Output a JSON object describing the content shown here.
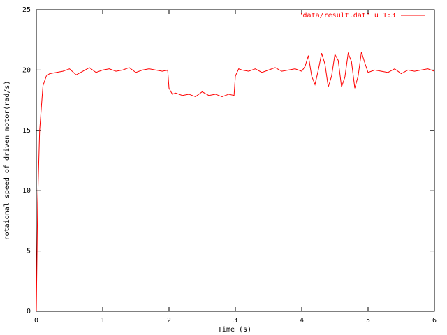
{
  "chart_data": {
    "type": "line",
    "xlabel": "Time (s)",
    "ylabel": "rotaional speed of driven motor(rad/s)",
    "x": [
      0,
      0.02,
      0.05,
      0.1,
      0.15,
      0.2,
      0.3,
      0.4,
      0.5,
      0.6,
      0.7,
      0.8,
      0.9,
      1.0,
      1.1,
      1.2,
      1.3,
      1.4,
      1.5,
      1.6,
      1.7,
      1.8,
      1.9,
      1.98,
      2.0,
      2.05,
      2.1,
      2.2,
      2.3,
      2.4,
      2.5,
      2.6,
      2.7,
      2.8,
      2.9,
      2.98,
      3.0,
      3.05,
      3.1,
      3.2,
      3.3,
      3.4,
      3.5,
      3.6,
      3.7,
      3.8,
      3.9,
      4.0,
      4.05,
      4.1,
      4.15,
      4.2,
      4.25,
      4.3,
      4.35,
      4.4,
      4.45,
      4.5,
      4.55,
      4.6,
      4.65,
      4.7,
      4.75,
      4.8,
      4.85,
      4.9,
      4.95,
      5.0,
      5.1,
      5.2,
      5.3,
      5.4,
      5.5,
      5.6,
      5.7,
      5.8,
      5.9,
      6.0
    ],
    "series": [
      {
        "name": "\"data/result.dat\" u 1:3",
        "color": "#ff0000",
        "values": [
          0,
          9,
          15,
          18.7,
          19.5,
          19.7,
          19.8,
          19.9,
          20.1,
          19.6,
          19.9,
          20.2,
          19.8,
          20.0,
          20.1,
          19.9,
          20.0,
          20.2,
          19.8,
          20.0,
          20.1,
          20.0,
          19.9,
          20.0,
          18.5,
          18.0,
          18.1,
          17.9,
          18.0,
          17.8,
          18.2,
          17.9,
          18.0,
          17.8,
          18.0,
          17.9,
          19.5,
          20.1,
          20.0,
          19.9,
          20.1,
          19.8,
          20.0,
          20.2,
          19.9,
          20.0,
          20.1,
          19.9,
          20.3,
          21.2,
          19.5,
          18.8,
          20.0,
          21.4,
          20.5,
          18.6,
          19.5,
          21.3,
          20.8,
          18.6,
          19.4,
          21.4,
          20.7,
          18.5,
          19.5,
          21.5,
          20.6,
          19.8,
          20.0,
          19.9,
          19.8,
          20.1,
          19.7,
          20.0,
          19.9,
          20.0,
          20.1,
          19.9
        ]
      }
    ],
    "xlim": [
      0,
      6
    ],
    "xticks": [
      0,
      1,
      2,
      3,
      4,
      5,
      6
    ],
    "ylim": [
      0,
      25
    ],
    "yticks": [
      0,
      5,
      10,
      15,
      20,
      25
    ],
    "grid": false,
    "legend": "top-right"
  }
}
